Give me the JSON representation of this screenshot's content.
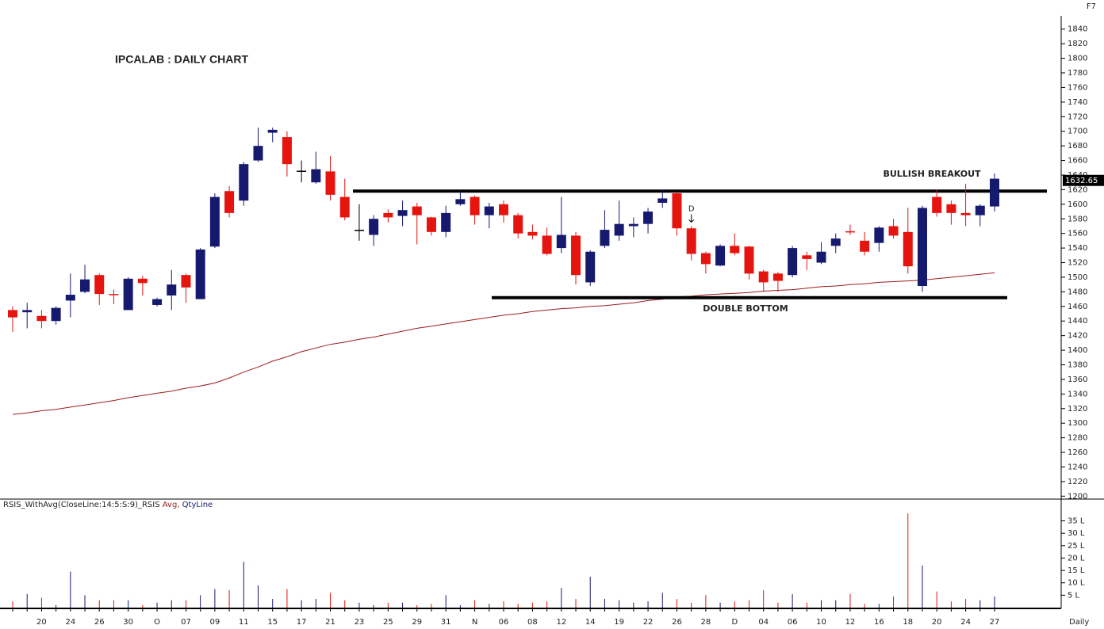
{
  "chart_data": {
    "type": "candlestick",
    "title": "IPCALAB : DAILY CHART",
    "hotkey": "F7",
    "timeframe_label": "Daily",
    "annotations": [
      "BULLISH BREAKOUT",
      "DOUBLE BOTTOM",
      "D"
    ],
    "indicator_label": [
      "RSIS_WithAvg(CloseLine:14:5:S:9)_RSIS",
      "Avg,",
      "QtyLine"
    ],
    "last_price": 1632.65,
    "categories": [
      null,
      null,
      "20",
      null,
      "24",
      null,
      "26",
      null,
      "30",
      null,
      "O",
      null,
      "07",
      null,
      "09",
      null,
      "11",
      null,
      "15",
      null,
      "17",
      null,
      "21",
      null,
      "23",
      null,
      "25",
      null,
      "29",
      null,
      "31",
      null,
      "N",
      null,
      "06",
      null,
      "08",
      null,
      "12",
      null,
      "14",
      null,
      "19",
      null,
      "22",
      null,
      "26",
      null,
      "28",
      null,
      "D",
      null,
      "04",
      null,
      "06",
      null,
      "10",
      null,
      "12",
      null,
      "16",
      null,
      "18",
      null,
      "20",
      null,
      "24",
      null,
      "27"
    ],
    "open": [
      1455,
      1452,
      1447,
      1440,
      1468,
      1480,
      1503,
      1477,
      1455,
      1498,
      1462,
      1475,
      1503,
      1470,
      1542,
      1618,
      1605,
      1660,
      1698,
      1692,
      1646,
      1630,
      1645,
      1610,
      1565,
      1558,
      1588,
      1584,
      1597,
      1582,
      1562,
      1600,
      1610,
      1585,
      1600,
      1585,
      1562,
      1557,
      1540,
      1557,
      1493,
      1543,
      1557,
      1570,
      1573,
      1602,
      1615,
      1567,
      1533,
      1516,
      1543,
      1542,
      1508,
      1505,
      1503,
      1530,
      1520,
      1543,
      1563,
      1550,
      1547,
      1570,
      1562,
      1488,
      1610,
      1600,
      1588,
      1585,
      1597
    ],
    "high": [
      1460,
      1465,
      1455,
      1460,
      1505,
      1517,
      1505,
      1483,
      1500,
      1502,
      1472,
      1510,
      1505,
      1540,
      1615,
      1625,
      1658,
      1705,
      1705,
      1700,
      1660,
      1672,
      1666,
      1635,
      1600,
      1585,
      1593,
      1605,
      1602,
      1583,
      1598,
      1618,
      1612,
      1602,
      1605,
      1588,
      1572,
      1568,
      1610,
      1562,
      1537,
      1592,
      1605,
      1582,
      1595,
      1620,
      1617,
      1570,
      1535,
      1545,
      1560,
      1543,
      1510,
      1507,
      1543,
      1535,
      1548,
      1560,
      1572,
      1562,
      1570,
      1580,
      1595,
      1598,
      1620,
      1605,
      1628,
      1600,
      1642
    ],
    "low": [
      1425,
      1430,
      1430,
      1435,
      1445,
      1478,
      1462,
      1463,
      1455,
      1475,
      1460,
      1455,
      1465,
      1470,
      1540,
      1582,
      1598,
      1658,
      1685,
      1638,
      1630,
      1628,
      1605,
      1578,
      1550,
      1543,
      1575,
      1570,
      1545,
      1557,
      1555,
      1598,
      1572,
      1567,
      1575,
      1553,
      1552,
      1530,
      1533,
      1490,
      1488,
      1540,
      1550,
      1555,
      1560,
      1595,
      1557,
      1523,
      1505,
      1515,
      1530,
      1497,
      1480,
      1480,
      1500,
      1510,
      1518,
      1533,
      1558,
      1530,
      1535,
      1553,
      1505,
      1480,
      1583,
      1572,
      1570,
      1570,
      1590
    ],
    "close": [
      1445,
      1455,
      1440,
      1458,
      1476,
      1497,
      1477,
      1476,
      1498,
      1492,
      1470,
      1490,
      1486,
      1538,
      1610,
      1588,
      1655,
      1680,
      1702,
      1655,
      1646,
      1648,
      1613,
      1582,
      1565,
      1580,
      1582,
      1592,
      1585,
      1562,
      1588,
      1607,
      1585,
      1597,
      1585,
      1560,
      1557,
      1532,
      1558,
      1503,
      1535,
      1565,
      1573,
      1573,
      1590,
      1608,
      1567,
      1532,
      1518,
      1543,
      1533,
      1505,
      1493,
      1495,
      1540,
      1525,
      1535,
      1553,
      1562,
      1535,
      1568,
      1557,
      1515,
      1595,
      1588,
      1588,
      1585,
      1598,
      1635
    ],
    "moving_average": [
      1312,
      1314,
      1317,
      1319,
      1322,
      1325,
      1328,
      1331,
      1335,
      1338,
      1341,
      1344,
      1348,
      1351,
      1355,
      1362,
      1370,
      1377,
      1385,
      1391,
      1398,
      1403,
      1408,
      1411,
      1415,
      1418,
      1422,
      1426,
      1430,
      1433,
      1436,
      1439,
      1442,
      1445,
      1448,
      1450,
      1453,
      1455,
      1457,
      1458,
      1460,
      1461,
      1463,
      1465,
      1468,
      1470,
      1473,
      1474,
      1476,
      1477,
      1478,
      1479,
      1481,
      1482,
      1483,
      1485,
      1487,
      1488,
      1490,
      1491,
      1493,
      1494,
      1495,
      1496,
      1498,
      1500,
      1502,
      1504,
      1506
    ],
    "volume": [
      2.5,
      5.5,
      4,
      1,
      14.5,
      5,
      3,
      3,
      3,
      1,
      2,
      3,
      3,
      5,
      7.5,
      7,
      18.5,
      9,
      3.5,
      7.5,
      3,
      3.5,
      6,
      3,
      2,
      1,
      2,
      2,
      1,
      1.5,
      5,
      1,
      3,
      1.5,
      2.5,
      1.5,
      2,
      2.5,
      8,
      3.5,
      12.5,
      3.5,
      3,
      2,
      2.5,
      6,
      3.5,
      2,
      5,
      2,
      2.5,
      3,
      7,
      2,
      5.5,
      2,
      3,
      3,
      5.5,
      1.5,
      1.5,
      4.5,
      38,
      17,
      6.5,
      2.5,
      3.5,
      3,
      4.5
    ],
    "up_color": "#161a6e",
    "down_color": "#e5140f",
    "ma_color": "#9b1c1c",
    "levels": [
      1618,
      1472
    ],
    "ylim": [
      1196,
      1856
    ],
    "yticks": [
      1200,
      1220,
      1240,
      1260,
      1280,
      1300,
      1320,
      1340,
      1360,
      1380,
      1400,
      1420,
      1440,
      1460,
      1480,
      1500,
      1520,
      1540,
      1560,
      1580,
      1600,
      1620,
      1640,
      1660,
      1680,
      1700,
      1720,
      1740,
      1760,
      1780,
      1800,
      1820,
      1840
    ],
    "volume_ylim": [
      0,
      39
    ],
    "volume_ticks": [
      {
        "value": 5,
        "label": "5 L"
      },
      {
        "value": 10,
        "label": "10 L"
      },
      {
        "value": 15,
        "label": "15 L"
      },
      {
        "value": 20,
        "label": "20 L"
      },
      {
        "value": 25,
        "label": "25 L"
      },
      {
        "value": 30,
        "label": "30 L"
      },
      {
        "value": 35,
        "label": "35 L"
      }
    ]
  }
}
